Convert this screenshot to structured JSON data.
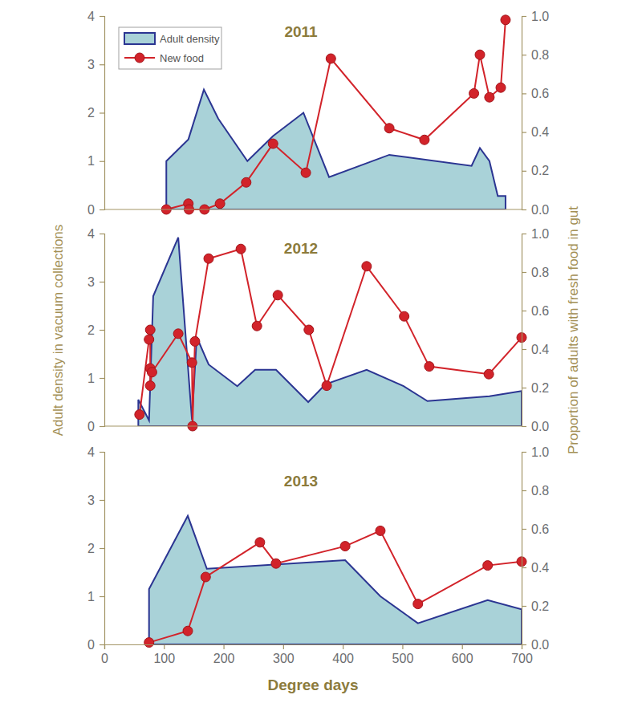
{
  "chart_data": [
    {
      "type": "line",
      "title": "2011",
      "legend": "top-left",
      "xlim": [
        0,
        700
      ],
      "ylim": [
        0,
        4
      ],
      "yticks": [
        0,
        1,
        2,
        3,
        4
      ],
      "y2lim": [
        0,
        1
      ],
      "y2ticks": [
        {
          "value": 0,
          "label": "0.0"
        },
        {
          "value": 0.2,
          "label": "0.2"
        },
        {
          "value": 0.4,
          "label": "0.4"
        },
        {
          "value": 0.6,
          "label": "0.6"
        },
        {
          "value": 0.8,
          "label": "0.8"
        },
        {
          "value": 1,
          "label": "1.0"
        }
      ],
      "series": [
        {
          "name": "Adult density",
          "type": "area",
          "color": "#a9d2d8",
          "x": [
            104,
            141,
            167,
            191,
            240,
            283,
            334,
            377,
            478,
            616,
            630,
            646,
            660,
            673
          ],
          "values": [
            1.0,
            1.45,
            2.48,
            1.88,
            1.0,
            1.52,
            2.0,
            0.67,
            1.13,
            0.9,
            1.27,
            1.0,
            0.28,
            0.28
          ]
        },
        {
          "name": "New food",
          "type": "line",
          "axis": "y2",
          "color": "#d2232a",
          "marker": "circle",
          "x": [
            104,
            141,
            142,
            168,
            194,
            238,
            283,
            338,
            380,
            478,
            537,
            620,
            630,
            646,
            665,
            673
          ],
          "values": [
            0,
            0.03,
            0,
            0,
            0.03,
            0.14,
            0.34,
            0.19,
            0.78,
            0.42,
            0.36,
            0.6,
            0.8,
            0.58,
            0.63,
            0.98
          ]
        }
      ]
    },
    {
      "type": "line",
      "title": "2012",
      "y_label": "Adult density in vacuum collections",
      "y2_label": "Proportion of adults with fresh food in gut",
      "xlim": [
        0,
        700
      ],
      "ylim": [
        0,
        4
      ],
      "yticks": [
        0,
        1,
        2,
        3,
        4
      ],
      "y2lim": [
        0,
        1
      ],
      "y2ticks": [
        {
          "value": 0,
          "label": "0.0"
        },
        {
          "value": 0.2,
          "label": "0.2"
        },
        {
          "value": 0.4,
          "label": "0.4"
        },
        {
          "value": 0.6,
          "label": "0.6"
        },
        {
          "value": 0.8,
          "label": "0.8"
        },
        {
          "value": 1,
          "label": "1.0"
        }
      ],
      "series": [
        {
          "name": "Adult density",
          "type": "area",
          "color": "#a9d2d8",
          "x": [
            57,
            75,
            82,
            124,
            147,
            155,
            175,
            223,
            253,
            288,
            342,
            371,
            440,
            502,
            542,
            646,
            700
          ],
          "values": [
            0.55,
            0.12,
            2.7,
            3.92,
            0.13,
            1.85,
            1.28,
            0.83,
            1.17,
            1.17,
            0.5,
            0.87,
            1.17,
            0.83,
            0.52,
            0.62,
            0.73
          ]
        },
        {
          "name": "New food",
          "type": "line",
          "axis": "y2",
          "color": "#d2232a",
          "marker": "circle",
          "x": [
            59,
            75,
            77,
            77,
            77,
            80,
            124,
            147,
            148,
            152,
            175,
            229,
            256,
            291,
            343,
            373,
            440,
            503,
            545,
            645,
            700
          ],
          "values": [
            0.06,
            0.45,
            0.5,
            0.3,
            0.21,
            0.28,
            0.48,
            0.33,
            0,
            0.44,
            0.87,
            0.92,
            0.52,
            0.68,
            0.5,
            0.21,
            0.83,
            0.57,
            0.31,
            0.27,
            0.46
          ]
        }
      ]
    },
    {
      "type": "line",
      "title": "2013",
      "x_label": "Degree days",
      "xlim": [
        0,
        700
      ],
      "xticks": [
        0,
        100,
        200,
        300,
        400,
        500,
        600,
        700
      ],
      "ylim": [
        0,
        4
      ],
      "yticks": [
        0,
        1,
        2,
        3,
        4
      ],
      "y2lim": [
        0,
        1
      ],
      "y2ticks": [
        {
          "value": 0,
          "label": "0.0"
        },
        {
          "value": 0.2,
          "label": "0.2"
        },
        {
          "value": 0.4,
          "label": "0.4"
        },
        {
          "value": 0.6,
          "label": "0.6"
        },
        {
          "value": 0.8,
          "label": "0.8"
        },
        {
          "value": 1,
          "label": "1.0"
        }
      ],
      "series": [
        {
          "name": "Adult density",
          "type": "area",
          "color": "#a9d2d8",
          "x": [
            75,
            140,
            172,
            404,
            463,
            526,
            643,
            700
          ],
          "values": [
            1.15,
            2.67,
            1.57,
            1.75,
            1.0,
            0.44,
            0.92,
            0.73
          ]
        },
        {
          "name": "New food",
          "type": "line",
          "axis": "y2",
          "color": "#d2232a",
          "marker": "circle",
          "x": [
            75,
            140,
            170,
            261,
            288,
            404,
            463,
            526,
            643,
            700
          ],
          "values": [
            0.01,
            0.07,
            0.35,
            0.53,
            0.42,
            0.51,
            0.59,
            0.21,
            0.41,
            0.43
          ]
        }
      ]
    }
  ]
}
